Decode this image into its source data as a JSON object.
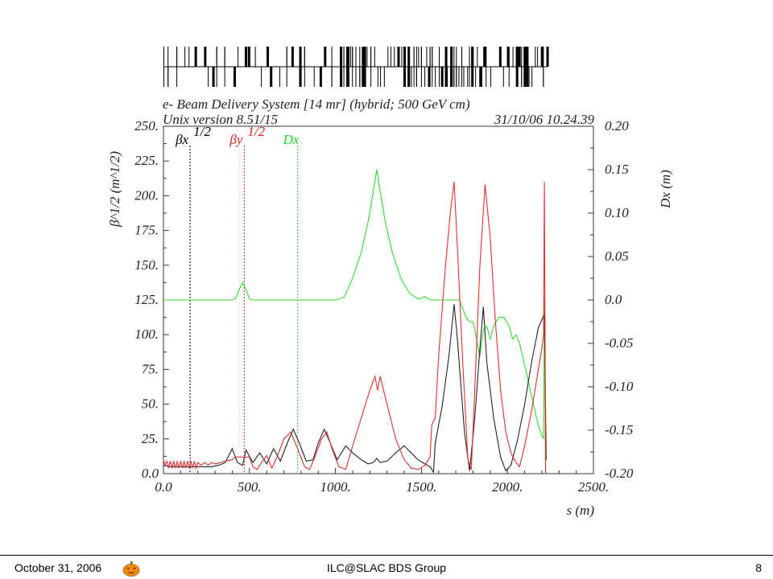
{
  "chart_data": {
    "type": "line",
    "title": "e- Beam Delivery System [14 mr] (hybrid; 500 GeV cm)",
    "subtitle_left": "Unix version 8.51/15",
    "subtitle_right": "31/10/06   10.24.39",
    "xlabel": "s (m)",
    "ylabel_left": "β^1/2 (m^1/2)",
    "ylabel_right": "Dx (m)",
    "xlim": [
      0,
      2500
    ],
    "ylim_left": [
      0,
      250
    ],
    "ylim_right": [
      -0.2,
      0.2
    ],
    "x_ticks": [
      "0.0",
      "500.",
      "1000.",
      "1500.",
      "2000.",
      "2500."
    ],
    "y_left_ticks": [
      "0.0",
      "25.",
      "50.",
      "75.",
      "100.",
      "125.",
      "150.",
      "175.",
      "200.",
      "225.",
      "250."
    ],
    "y_right_ticks": [
      "-0.20",
      "-0.15",
      "-0.10",
      "-0.05",
      "0.0",
      "0.05",
      "0.10",
      "0.15",
      "0.20"
    ],
    "legend": [
      {
        "label": "βx",
        "sup": "1/2",
        "color": "#000000",
        "marker_x": 155
      },
      {
        "label": "βy",
        "sup": "1/2",
        "color": "#e02020",
        "marker_x": 470
      },
      {
        "label": "Dx",
        "sup": "",
        "color": "#22dd22",
        "marker_x": 780
      }
    ],
    "series": [
      {
        "name": "βx",
        "color": "#222222",
        "axis": "left",
        "points": [
          [
            0,
            6
          ],
          [
            40,
            5
          ],
          [
            80,
            5
          ],
          [
            120,
            5
          ],
          [
            160,
            5
          ],
          [
            200,
            5
          ],
          [
            240,
            5
          ],
          [
            280,
            5
          ],
          [
            320,
            6
          ],
          [
            360,
            8
          ],
          [
            400,
            18
          ],
          [
            430,
            8
          ],
          [
            460,
            6
          ],
          [
            480,
            17
          ],
          [
            520,
            8
          ],
          [
            560,
            15
          ],
          [
            600,
            7
          ],
          [
            640,
            18
          ],
          [
            680,
            9
          ],
          [
            720,
            22
          ],
          [
            755,
            32
          ],
          [
            790,
            22
          ],
          [
            830,
            9
          ],
          [
            870,
            10
          ],
          [
            900,
            22
          ],
          [
            935,
            32
          ],
          [
            970,
            22
          ],
          [
            1010,
            10
          ],
          [
            1060,
            20
          ],
          [
            1100,
            15
          ],
          [
            1150,
            10
          ],
          [
            1190,
            7
          ],
          [
            1220,
            8
          ],
          [
            1240,
            11
          ],
          [
            1260,
            8
          ],
          [
            1300,
            9
          ],
          [
            1350,
            15
          ],
          [
            1400,
            20
          ],
          [
            1440,
            15
          ],
          [
            1480,
            10
          ],
          [
            1520,
            7
          ],
          [
            1550,
            5
          ],
          [
            1570,
            1
          ],
          [
            1580,
            22
          ],
          [
            1620,
            48
          ],
          [
            1660,
            85
          ],
          [
            1690,
            122
          ],
          [
            1710,
            95
          ],
          [
            1750,
            30
          ],
          [
            1780,
            2
          ],
          [
            1810,
            40
          ],
          [
            1840,
            90
          ],
          [
            1860,
            120
          ],
          [
            1880,
            80
          ],
          [
            1920,
            40
          ],
          [
            1960,
            12
          ],
          [
            1990,
            2
          ],
          [
            2020,
            6
          ],
          [
            2060,
            25
          ],
          [
            2100,
            50
          ],
          [
            2140,
            80
          ],
          [
            2180,
            105
          ],
          [
            2215,
            115
          ],
          [
            2225,
            10
          ]
        ]
      },
      {
        "name": "βy",
        "color": "#e03030",
        "axis": "left",
        "points": [
          [
            0,
            10
          ],
          [
            10,
            6
          ],
          [
            20,
            9
          ],
          [
            30,
            4
          ],
          [
            40,
            9
          ],
          [
            50,
            4
          ],
          [
            60,
            9
          ],
          [
            70,
            4
          ],
          [
            80,
            9
          ],
          [
            90,
            4
          ],
          [
            100,
            9
          ],
          [
            110,
            4
          ],
          [
            120,
            9
          ],
          [
            130,
            4
          ],
          [
            140,
            9
          ],
          [
            150,
            4
          ],
          [
            160,
            9
          ],
          [
            170,
            4
          ],
          [
            180,
            9
          ],
          [
            190,
            4
          ],
          [
            200,
            8
          ],
          [
            220,
            6
          ],
          [
            240,
            8
          ],
          [
            260,
            6
          ],
          [
            280,
            8
          ],
          [
            300,
            7
          ],
          [
            330,
            8
          ],
          [
            360,
            9
          ],
          [
            400,
            10
          ],
          [
            420,
            12
          ],
          [
            480,
            12
          ],
          [
            500,
            12
          ],
          [
            520,
            5
          ],
          [
            545,
            3
          ],
          [
            570,
            8
          ],
          [
            600,
            13
          ],
          [
            630,
            4
          ],
          [
            660,
            12
          ],
          [
            700,
            25
          ],
          [
            740,
            30
          ],
          [
            780,
            18
          ],
          [
            820,
            5
          ],
          [
            850,
            3
          ],
          [
            880,
            12
          ],
          [
            920,
            25
          ],
          [
            950,
            30
          ],
          [
            980,
            18
          ],
          [
            1020,
            5
          ],
          [
            1060,
            3
          ],
          [
            1100,
            20
          ],
          [
            1150,
            40
          ],
          [
            1200,
            60
          ],
          [
            1230,
            70
          ],
          [
            1245,
            60
          ],
          [
            1260,
            70
          ],
          [
            1300,
            50
          ],
          [
            1350,
            25
          ],
          [
            1400,
            10
          ],
          [
            1440,
            4
          ],
          [
            1480,
            3
          ],
          [
            1520,
            6
          ],
          [
            1550,
            12
          ],
          [
            1560,
            35
          ],
          [
            1580,
            40
          ],
          [
            1600,
            85
          ],
          [
            1640,
            150
          ],
          [
            1670,
            190
          ],
          [
            1690,
            210
          ],
          [
            1710,
            160
          ],
          [
            1740,
            80
          ],
          [
            1770,
            10
          ],
          [
            1790,
            3
          ],
          [
            1810,
            60
          ],
          [
            1840,
            150
          ],
          [
            1870,
            208
          ],
          [
            1900,
            170
          ],
          [
            1930,
            110
          ],
          [
            1960,
            60
          ],
          [
            1990,
            30
          ],
          [
            2020,
            15
          ],
          [
            2050,
            8
          ],
          [
            2070,
            5
          ],
          [
            2100,
            20
          ],
          [
            2140,
            45
          ],
          [
            2180,
            75
          ],
          [
            2200,
            90
          ],
          [
            2210,
            100
          ],
          [
            2215,
            210
          ],
          [
            2222,
            0
          ]
        ]
      },
      {
        "name": "Dx",
        "color": "#33dd33",
        "axis": "right",
        "points": [
          [
            0,
            0
          ],
          [
            400,
            0
          ],
          [
            420,
            0.002
          ],
          [
            440,
            0.012
          ],
          [
            460,
            0.02
          ],
          [
            480,
            0.012
          ],
          [
            500,
            0.001
          ],
          [
            520,
            0
          ],
          [
            1000,
            0
          ],
          [
            1050,
            0.003
          ],
          [
            1100,
            0.025
          ],
          [
            1150,
            0.055
          ],
          [
            1190,
            0.09
          ],
          [
            1220,
            0.125
          ],
          [
            1240,
            0.15
          ],
          [
            1260,
            0.125
          ],
          [
            1290,
            0.09
          ],
          [
            1330,
            0.055
          ],
          [
            1380,
            0.025
          ],
          [
            1430,
            0.008
          ],
          [
            1480,
            0.001
          ],
          [
            1500,
            0.002
          ],
          [
            1520,
            0.004
          ],
          [
            1540,
            0.001
          ],
          [
            1560,
            0
          ],
          [
            1720,
            0
          ],
          [
            1740,
            -0.01
          ],
          [
            1760,
            -0.02
          ],
          [
            1780,
            -0.025
          ],
          [
            1800,
            -0.025
          ],
          [
            1820,
            -0.045
          ],
          [
            1840,
            -0.065
          ],
          [
            1860,
            -0.035
          ],
          [
            1880,
            -0.03
          ],
          [
            1900,
            -0.045
          ],
          [
            1920,
            -0.03
          ],
          [
            1950,
            -0.02
          ],
          [
            1980,
            -0.02
          ],
          [
            2010,
            -0.03
          ],
          [
            2030,
            -0.045
          ],
          [
            2050,
            -0.04
          ],
          [
            2070,
            -0.05
          ],
          [
            2100,
            -0.075
          ],
          [
            2140,
            -0.11
          ],
          [
            2180,
            -0.145
          ],
          [
            2210,
            -0.16
          ],
          [
            2215,
            0.0
          ],
          [
            2222,
            -0.2
          ]
        ]
      }
    ],
    "lattice_strip": "magnet layout bar"
  },
  "footer": {
    "date": "October 31, 2006",
    "center": "ILC@SLAC BDS Group",
    "page": "8",
    "icon": "pumpkin-icon"
  }
}
